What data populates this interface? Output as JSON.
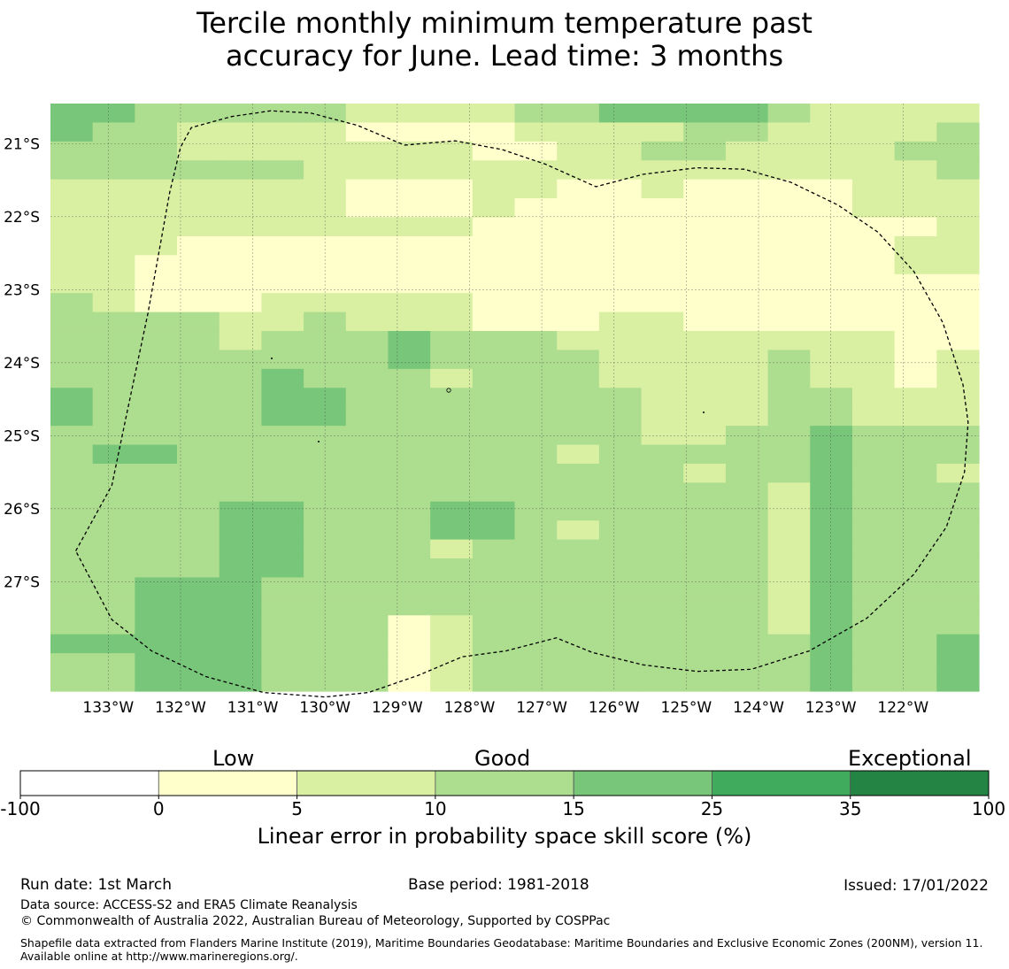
{
  "title_line1": "Tercile monthly minimum temperature past",
  "title_line2": "accuracy for June. Lead time: 3 months",
  "map": {
    "lon_range": [
      -133.8,
      -120.95
    ],
    "lat_range": [
      -28.5,
      -20.45
    ],
    "lon_ticks": [
      {
        "value": -133,
        "label": "133°W"
      },
      {
        "value": -132,
        "label": "132°W"
      },
      {
        "value": -131,
        "label": "131°W"
      },
      {
        "value": -130,
        "label": "130°W"
      },
      {
        "value": -129,
        "label": "129°W"
      },
      {
        "value": -128,
        "label": "128°W"
      },
      {
        "value": -127,
        "label": "127°W"
      },
      {
        "value": -126,
        "label": "126°W"
      },
      {
        "value": -125,
        "label": "125°W"
      },
      {
        "value": -124,
        "label": "124°W"
      },
      {
        "value": -123,
        "label": "123°W"
      },
      {
        "value": -122,
        "label": "122°W"
      }
    ],
    "lat_ticks": [
      {
        "value": -21,
        "label": "21°S"
      },
      {
        "value": -22,
        "label": "22°S"
      },
      {
        "value": -23,
        "label": "23°S"
      },
      {
        "value": -24,
        "label": "24°S"
      },
      {
        "value": -25,
        "label": "25°S"
      },
      {
        "value": -26,
        "label": "26°S"
      },
      {
        "value": -27,
        "label": "27°S"
      }
    ],
    "cell_colors": [
      "#ffffcc",
      "#d9f0a3",
      "#addd8e",
      "#78c679",
      "#41ab5d",
      "#238443"
    ],
    "grid_rows": [
      "3322222111122333321111",
      "3221111000011112211112",
      "2221111111001122111122",
      "2222221111111111111112",
      "1111111000110010000111",
      "1111111000100000000111",
      "1111111111000000000001",
      "1110000000000000000011",
      "1100000000000000000011",
      "1100000000000000000000",
      "2100011111000000000000",
      "2222112111000110000000",
      "2222122232221111111100",
      "2222222232222111121101",
      "2222232221222111121101",
      "3222233222222211122111",
      "3222233222222211122111",
      "2222222222222211223222",
      "2332222222221222223222",
      "2222222222222221223221",
      "2222222222222222213222",
      "2222332223322222213222",
      "2222332223321222213222",
      "2222332221222222213222",
      "2222332222222222213222",
      "2233322222222222213222",
      "2233322222222222213222",
      "2233322201222222213222",
      "3333322201222222223223",
      "2233322201222222223223",
      "2233322201222222223223"
    ],
    "eez_boundary": [
      [
        -133.45,
        -26.58
      ],
      [
        -132.95,
        -25.68
      ],
      [
        -132.75,
        -24.73
      ],
      [
        -132.45,
        -23.32
      ],
      [
        -132.15,
        -21.67
      ],
      [
        -132.0,
        -21.05
      ],
      [
        -131.85,
        -20.78
      ],
      [
        -131.3,
        -20.63
      ],
      [
        -130.75,
        -20.55
      ],
      [
        -130.2,
        -20.58
      ],
      [
        -129.55,
        -20.75
      ],
      [
        -128.9,
        -21.02
      ],
      [
        -128.2,
        -20.96
      ],
      [
        -127.55,
        -21.08
      ],
      [
        -126.95,
        -21.28
      ],
      [
        -126.25,
        -21.59
      ],
      [
        -125.6,
        -21.42
      ],
      [
        -124.85,
        -21.33
      ],
      [
        -124.2,
        -21.35
      ],
      [
        -123.55,
        -21.53
      ],
      [
        -122.9,
        -21.84
      ],
      [
        -122.35,
        -22.21
      ],
      [
        -121.85,
        -22.75
      ],
      [
        -121.45,
        -23.45
      ],
      [
        -121.17,
        -24.3
      ],
      [
        -121.1,
        -24.82
      ],
      [
        -121.15,
        -25.5
      ],
      [
        -121.4,
        -26.25
      ],
      [
        -121.85,
        -26.9
      ],
      [
        -122.5,
        -27.5
      ],
      [
        -123.3,
        -27.95
      ],
      [
        -124.1,
        -28.2
      ],
      [
        -124.85,
        -28.23
      ],
      [
        -125.6,
        -28.14
      ],
      [
        -126.3,
        -27.97
      ],
      [
        -126.8,
        -27.77
      ],
      [
        -127.5,
        -27.95
      ],
      [
        -128.1,
        -28.03
      ],
      [
        -128.7,
        -28.28
      ],
      [
        -129.4,
        -28.52
      ],
      [
        -130.0,
        -28.58
      ],
      [
        -130.85,
        -28.52
      ],
      [
        -131.65,
        -28.3
      ],
      [
        -132.4,
        -27.95
      ],
      [
        -132.95,
        -27.52
      ],
      [
        -133.45,
        -26.58
      ]
    ]
  },
  "colorbar": {
    "bins": [
      {
        "from": "-100",
        "to": "0",
        "color": "#ffffff"
      },
      {
        "from": "0",
        "to": "5",
        "color": "#ffffcc"
      },
      {
        "from": "5",
        "to": "10",
        "color": "#d9f0a3"
      },
      {
        "from": "10",
        "to": "15",
        "color": "#addd8e"
      },
      {
        "from": "15",
        "to": "25",
        "color": "#78c679"
      },
      {
        "from": "25",
        "to": "35",
        "color": "#41ab5d"
      },
      {
        "from": "35",
        "to": "100",
        "color": "#238443"
      }
    ],
    "tick_labels": [
      "-100",
      "0",
      "5",
      "10",
      "15",
      "25",
      "35",
      "100"
    ],
    "category_low": "Low",
    "category_good": "Good",
    "category_exceptional": "Exceptional",
    "title": "Linear error in probability space skill score (%)"
  },
  "footer": {
    "run_date": "Run date: 1st March",
    "base_period": "Base period: 1981-2018",
    "issued": "Issued: 17/01/2022",
    "data_source": "Data source: ACCESS-S2 and ERA5 Climate Reanalysis",
    "copyright": "© Commonwealth of Australia 2022, Australian Bureau of Meteorology, Supported by COSPPac",
    "shapefile": "Shapefile data extracted from Flanders Marine Institute (2019), Maritime Boundaries Geodatabase: Maritime Boundaries and Exclusive Economic Zones (200NM), version 11. Available online at http://www.marineregions.org/."
  }
}
